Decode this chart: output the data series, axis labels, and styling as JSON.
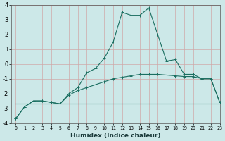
{
  "xlabel": "Humidex (Indice chaleur)",
  "xlim": [
    -0.5,
    23
  ],
  "ylim": [
    -4,
    4
  ],
  "yticks": [
    -4,
    -3,
    -2,
    -1,
    0,
    1,
    2,
    3,
    4
  ],
  "xticks": [
    0,
    1,
    2,
    3,
    4,
    5,
    6,
    7,
    8,
    9,
    10,
    11,
    12,
    13,
    14,
    15,
    16,
    17,
    18,
    19,
    20,
    21,
    22,
    23
  ],
  "background_color": "#cce8e8",
  "grid_color": "#b8d8d8",
  "line_color": "#1a6e60",
  "line1_x": [
    0,
    1,
    2,
    3,
    4,
    5,
    6,
    7,
    8,
    9,
    10,
    11,
    12,
    13,
    14,
    15,
    16,
    17,
    18,
    19,
    20,
    21,
    22,
    23
  ],
  "line1_y": [
    -3.7,
    -2.9,
    -2.5,
    -2.5,
    -2.6,
    -2.7,
    -2.0,
    -1.6,
    -0.6,
    -0.3,
    0.4,
    1.5,
    3.5,
    3.3,
    3.3,
    3.8,
    2.0,
    0.2,
    0.3,
    -0.7,
    -0.7,
    -1.0,
    -1.0,
    -2.6
  ],
  "line2_x": [
    0,
    1,
    2,
    3,
    4,
    5,
    6,
    7,
    8,
    9,
    10,
    11,
    12,
    13,
    14,
    15,
    16,
    17,
    18,
    19,
    20,
    21,
    22,
    23
  ],
  "line2_y": [
    -3.7,
    -2.9,
    -2.5,
    -2.5,
    -2.6,
    -2.7,
    -2.1,
    -1.8,
    -1.6,
    -1.4,
    -1.2,
    -1.0,
    -0.9,
    -0.8,
    -0.7,
    -0.7,
    -0.7,
    -0.75,
    -0.8,
    -0.85,
    -0.85,
    -1.0,
    -1.0,
    -2.6
  ],
  "line3_x": [
    0,
    23
  ],
  "line3_y": [
    -2.7,
    -2.7
  ],
  "xlabel_fontsize": 6.5,
  "ytick_fontsize": 6.0,
  "xtick_fontsize": 4.8
}
